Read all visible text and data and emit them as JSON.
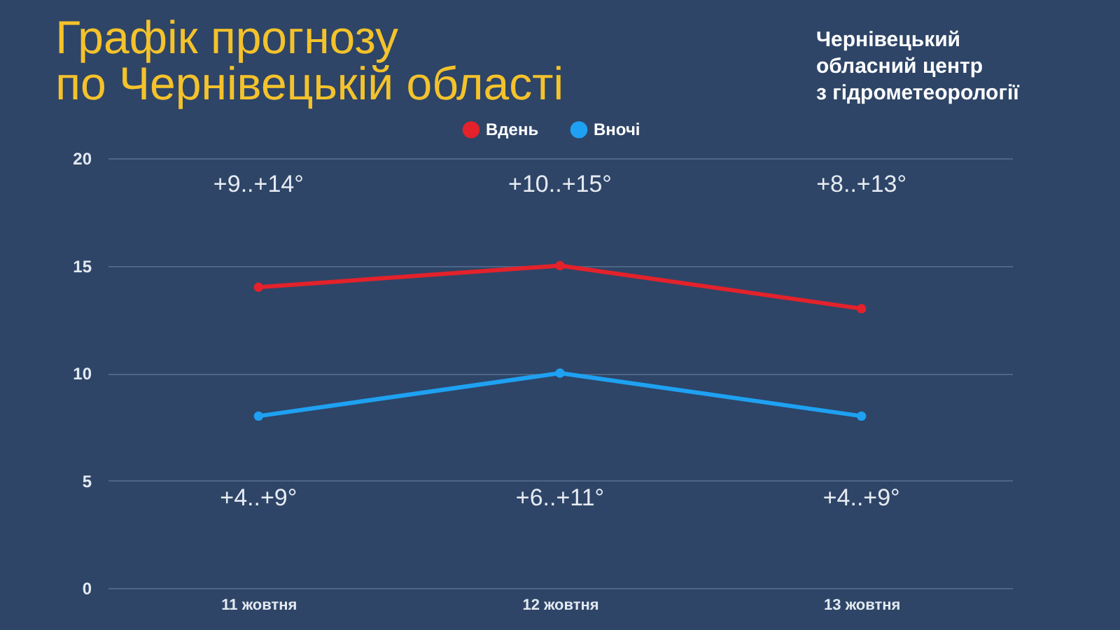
{
  "chart_data": {
    "type": "line",
    "title": "Графік прогнозу\nпо Чернівецькій області",
    "categories": [
      "11 жовтня",
      "12 жовтня",
      "13 жовтня"
    ],
    "series": [
      {
        "name": "Вдень",
        "color": "#e3222b",
        "values": [
          14,
          15,
          13
        ]
      },
      {
        "name": "Вночі",
        "color": "#1ea1f2",
        "values": [
          8,
          10,
          8
        ]
      }
    ],
    "ylim": [
      0,
      20
    ],
    "yticks": [
      0,
      5,
      10,
      15,
      20
    ],
    "grid": "y",
    "legend": "top",
    "marker": "circle",
    "line_style": "solid",
    "annotations": [
      "+9..+14°",
      "+10..+15°",
      "+8..+13°",
      "+4..+9°",
      "+6..+11°",
      "+4..+9°",
      "Чернівецький\nобласний центр\nз гідрометеорології"
    ]
  }
}
